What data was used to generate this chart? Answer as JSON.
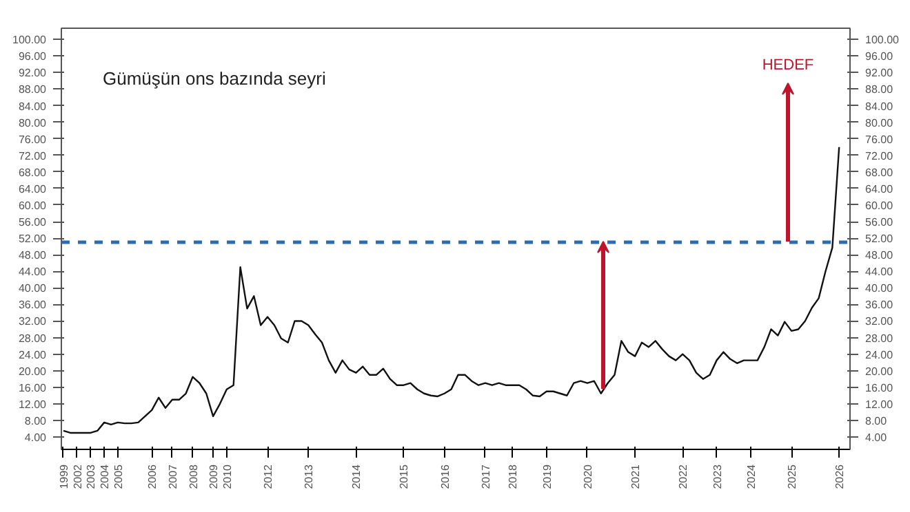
{
  "chart_data": {
    "type": "line",
    "title": "Gümüşün ons bazında seyri",
    "categories": [
      "1999",
      null,
      "2002",
      null,
      "2003",
      null,
      "2004",
      null,
      "2005",
      null,
      null,
      null,
      null,
      "2006",
      null,
      null,
      "2007",
      null,
      null,
      "2008",
      null,
      null,
      "2009",
      null,
      "2010",
      null,
      null,
      null,
      null,
      null,
      "2012",
      null,
      null,
      null,
      null,
      null,
      "2013",
      null,
      null,
      null,
      null,
      null,
      null,
      "2014",
      null,
      null,
      null,
      null,
      null,
      null,
      "2015",
      null,
      null,
      null,
      null,
      null,
      "2016",
      null,
      null,
      null,
      null,
      null,
      "2017",
      null,
      null,
      null,
      "2018",
      null,
      null,
      null,
      null,
      "2019",
      null,
      null,
      null,
      null,
      null,
      "2020",
      null,
      null,
      null,
      null,
      null,
      null,
      "2021",
      null,
      null,
      null,
      null,
      null,
      null,
      "2022",
      null,
      null,
      null,
      null,
      "2023",
      null,
      null,
      null,
      null,
      "2024",
      null,
      null,
      null,
      null,
      null,
      "2025",
      null,
      null,
      null,
      null,
      null,
      null,
      "2026"
    ],
    "series": [
      {
        "color": "#111111",
        "values": [
          5.5,
          5,
          5,
          5,
          5,
          5.5,
          7.5,
          7,
          7.5,
          7.3,
          7.3,
          7.5,
          9,
          10.5,
          13.5,
          11,
          13,
          13,
          14.5,
          18.5,
          17,
          14.5,
          9,
          12,
          15.5,
          16.5,
          45,
          35,
          38,
          31,
          33,
          31,
          27.8,
          26.8,
          32,
          32,
          31,
          28.8,
          26.8,
          22.5,
          19.5,
          22.5,
          20.3,
          19.5,
          21,
          19,
          19,
          20.5,
          18,
          16.5,
          16.5,
          17,
          15.5,
          14.5,
          14,
          13.8,
          14.5,
          15.5,
          19,
          19,
          17.5,
          16.5,
          17,
          16.5,
          17,
          16.5,
          16.5,
          16.5,
          15.5,
          14,
          13.8,
          15,
          15,
          14.5,
          14,
          17,
          17.5,
          17,
          17.5,
          14.5,
          17,
          19,
          27.2,
          24.5,
          23.5,
          26.8,
          25.7,
          27.2,
          25.2,
          23.5,
          22.5,
          24,
          22.5,
          19.5,
          18,
          19,
          22.5,
          24.5,
          22.8,
          21.8,
          22.5,
          22.5,
          22.5,
          25.7,
          30,
          28.5,
          31.8,
          29.6,
          30,
          32,
          35.2,
          37.5,
          44,
          49.7,
          74
        ]
      }
    ],
    "ylim": [
      1,
      102.7
    ],
    "yticks": [
      {
        "value": 4,
        "label": "4.00"
      },
      {
        "value": 8,
        "label": "8.00"
      },
      {
        "value": 12,
        "label": "12.00"
      },
      {
        "value": 16,
        "label": "16.00"
      },
      {
        "value": 20,
        "label": "20.00"
      },
      {
        "value": 24,
        "label": "24.00"
      },
      {
        "value": 28,
        "label": "28.00"
      },
      {
        "value": 32,
        "label": "32.00"
      },
      {
        "value": 36,
        "label": "36.00"
      },
      {
        "value": 40,
        "label": "40.00"
      },
      {
        "value": 44,
        "label": "44.00"
      },
      {
        "value": 48,
        "label": "48.00"
      },
      {
        "value": 52,
        "label": "52.00"
      },
      {
        "value": 56,
        "label": "56.00"
      },
      {
        "value": 60,
        "label": "60.00"
      },
      {
        "value": 64,
        "label": "64.00"
      },
      {
        "value": 68,
        "label": "68.00"
      },
      {
        "value": 72,
        "label": "72.00"
      },
      {
        "value": 76,
        "label": "76.00"
      },
      {
        "value": 80,
        "label": "80.00"
      },
      {
        "value": 84,
        "label": "84.00"
      },
      {
        "value": 88,
        "label": "88.00"
      },
      {
        "value": 92,
        "label": "92.00"
      },
      {
        "value": 96,
        "label": "96.00"
      },
      {
        "value": 100,
        "label": "100.00"
      }
    ],
    "y2lim": [
      1,
      102.7
    ],
    "y2ticks": [
      {
        "value": 4,
        "label": "4.00"
      },
      {
        "value": 8,
        "label": "8.00"
      },
      {
        "value": 12,
        "label": "12.00"
      },
      {
        "value": 16,
        "label": "16.00"
      },
      {
        "value": 20,
        "label": "20.00"
      },
      {
        "value": 24,
        "label": "24.00"
      },
      {
        "value": 28,
        "label": "28.00"
      },
      {
        "value": 32,
        "label": "32.00"
      },
      {
        "value": 36,
        "label": "36.00"
      },
      {
        "value": 40,
        "label": "40.00"
      },
      {
        "value": 44,
        "label": "44.00"
      },
      {
        "value": 48,
        "label": "48.00"
      },
      {
        "value": 52,
        "label": "52.00"
      },
      {
        "value": 56,
        "label": "56.00"
      },
      {
        "value": 60,
        "label": "60.00"
      },
      {
        "value": 64,
        "label": "64.00"
      },
      {
        "value": 68,
        "label": "68.00"
      },
      {
        "value": 72,
        "label": "72.00"
      },
      {
        "value": 76,
        "label": "76.00"
      },
      {
        "value": 80,
        "label": "80.00"
      },
      {
        "value": 84,
        "label": "84.00"
      },
      {
        "value": 88,
        "label": "88.00"
      },
      {
        "value": 92,
        "label": "92.00"
      },
      {
        "value": 96,
        "label": "96.00"
      },
      {
        "value": 100,
        "label": "100.00"
      }
    ],
    "ref_lines": [
      {
        "axis": "y",
        "value": 51,
        "color": "#2e6db4",
        "line_style": "dashed"
      }
    ],
    "annotations": [
      "HEDEF"
    ],
    "grid": false
  }
}
